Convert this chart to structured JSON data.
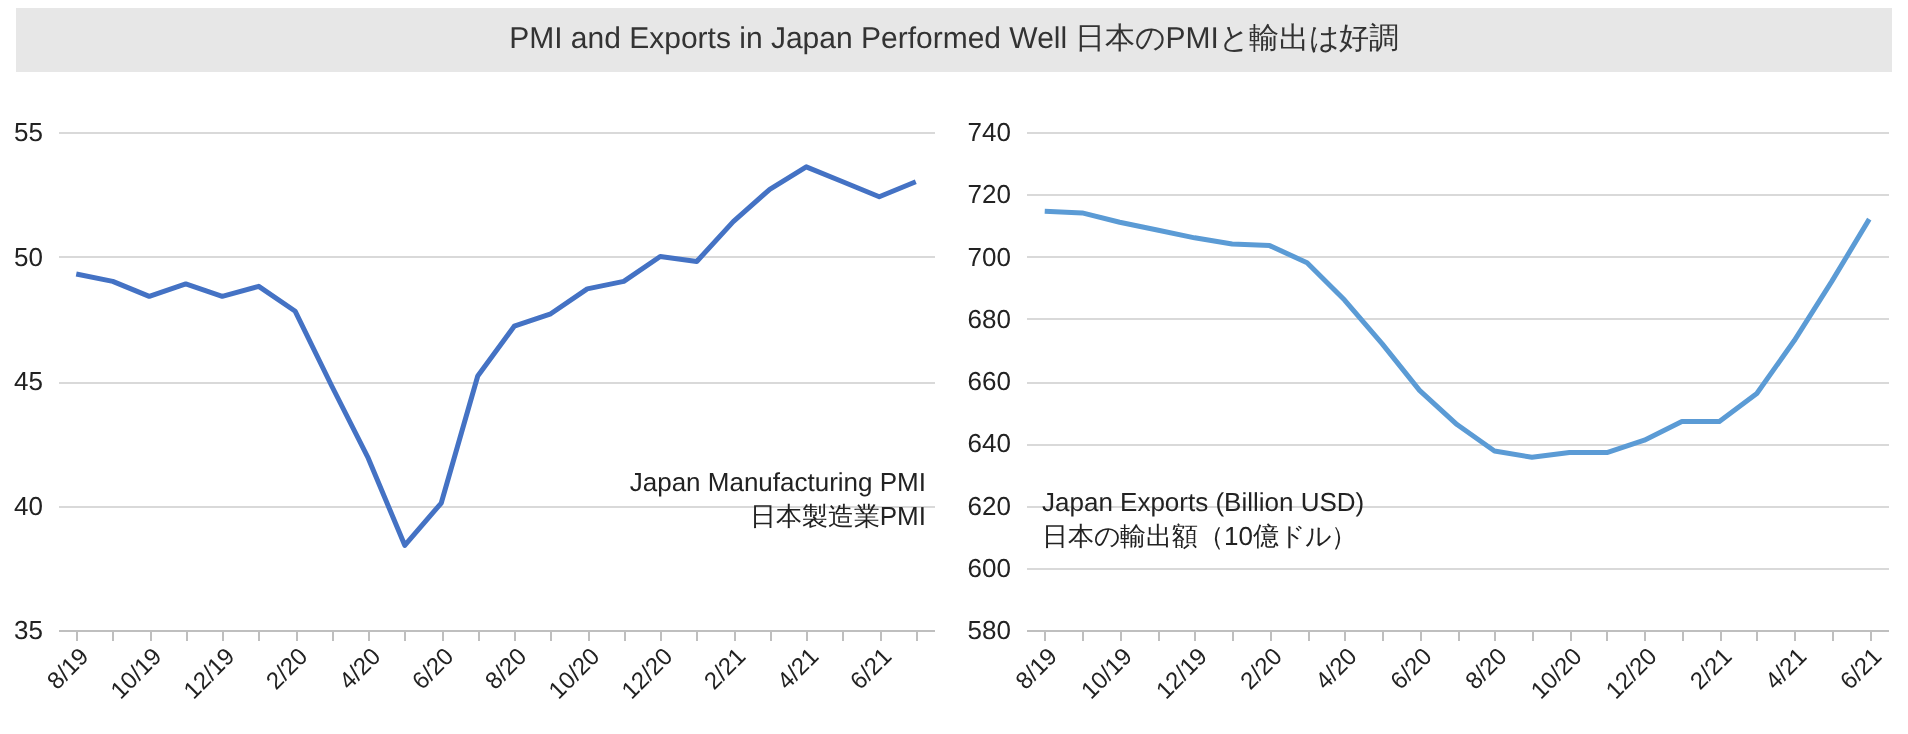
{
  "chart_data": [
    {
      "type": "line",
      "title": "PMI and Exports in Japan Performed Well  日本のPMIと輸出は好調",
      "categories": [
        "8/19",
        null,
        "10/19",
        null,
        "12/19",
        null,
        "2/20",
        null,
        "4/20",
        null,
        "6/20",
        null,
        "8/20",
        null,
        "10/20",
        null,
        "12/20",
        null,
        "2/21",
        null,
        "4/21",
        null,
        "6/21",
        null
      ],
      "series": [
        {
          "name": "Japan Manufacturing PMI\n日本製造業PMI",
          "color": "#4472c4",
          "values": [
            49.3,
            49.0,
            48.4,
            48.9,
            48.4,
            48.8,
            47.8,
            44.8,
            41.9,
            38.4,
            40.1,
            45.2,
            47.2,
            47.7,
            48.7,
            49.0,
            50.0,
            49.8,
            51.4,
            52.7,
            53.6,
            53.0,
            52.4,
            53.0
          ]
        }
      ],
      "ylim": [
        35,
        55
      ],
      "yticks": [
        35,
        40,
        45,
        50,
        55
      ],
      "grid": "y"
    },
    {
      "type": "line",
      "categories": [
        "8/19",
        null,
        "10/19",
        null,
        "12/19",
        null,
        "2/20",
        null,
        "4/20",
        null,
        "6/20",
        null,
        "8/20",
        null,
        "10/20",
        null,
        "12/20",
        null,
        "2/21",
        null,
        "4/21",
        null,
        "6/21"
      ],
      "series": [
        {
          "name": "Japan Exports (Billion USD)\n日本の輸出額（10億ドル）",
          "color": "#5b9bd5",
          "values": [
            714.5,
            714,
            711,
            708.5,
            706,
            704,
            703.5,
            698,
            686,
            672,
            657,
            646,
            637.5,
            635.5,
            637,
            637,
            641,
            647,
            647,
            656,
            673,
            692,
            712
          ]
        }
      ],
      "ylim": [
        580,
        740
      ],
      "yticks": [
        580,
        600,
        620,
        640,
        660,
        680,
        700,
        720,
        740
      ],
      "grid": "y"
    }
  ]
}
